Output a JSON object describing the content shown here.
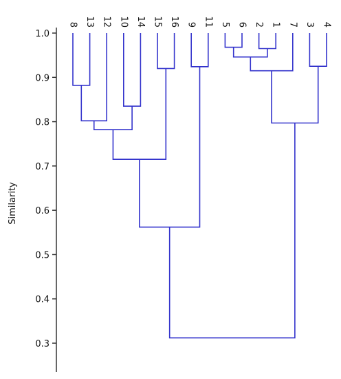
{
  "chart_data": {
    "type": "dendrogram",
    "ylabel": "Similarity",
    "ylim": [
      0.25,
      1.0
    ],
    "y_ticks": [
      1.0,
      0.9,
      0.8,
      0.7,
      0.6,
      0.5,
      0.4,
      0.3
    ],
    "y_tick_labels": [
      "1.0",
      "0.9",
      "0.8",
      "0.7",
      "0.6",
      "0.5",
      "0.4",
      "0.3"
    ],
    "leaf_order": [
      "8",
      "13",
      "12",
      "10",
      "14",
      "15",
      "16",
      "9",
      "11",
      "5",
      "6",
      "2",
      "1",
      "7",
      "3",
      "4"
    ],
    "line_color": "#3333cc",
    "merges": [
      {
        "left": "8",
        "right": "13",
        "similarity": 0.882
      },
      {
        "left": "A",
        "right": "12",
        "similarity": 0.802
      },
      {
        "left": "10",
        "right": "14",
        "similarity": 0.835
      },
      {
        "left": "B",
        "right": "C",
        "similarity": 0.782
      },
      {
        "left": "15",
        "right": "16",
        "similarity": 0.92
      },
      {
        "left": "D",
        "right": "E",
        "similarity": 0.715
      },
      {
        "left": "9",
        "right": "11",
        "similarity": 0.924
      },
      {
        "left": "F",
        "right": "G",
        "similarity": 0.562
      },
      {
        "left": "5",
        "right": "6",
        "similarity": 0.968
      },
      {
        "left": "2",
        "right": "1",
        "similarity": 0.965
      },
      {
        "left": "I",
        "right": "J",
        "similarity": 0.946
      },
      {
        "left": "K",
        "right": "7",
        "similarity": 0.915
      },
      {
        "left": "3",
        "right": "4",
        "similarity": 0.925
      },
      {
        "left": "L",
        "right": "M",
        "similarity": 0.797
      },
      {
        "left": "H",
        "right": "N",
        "similarity": 0.312
      }
    ]
  }
}
